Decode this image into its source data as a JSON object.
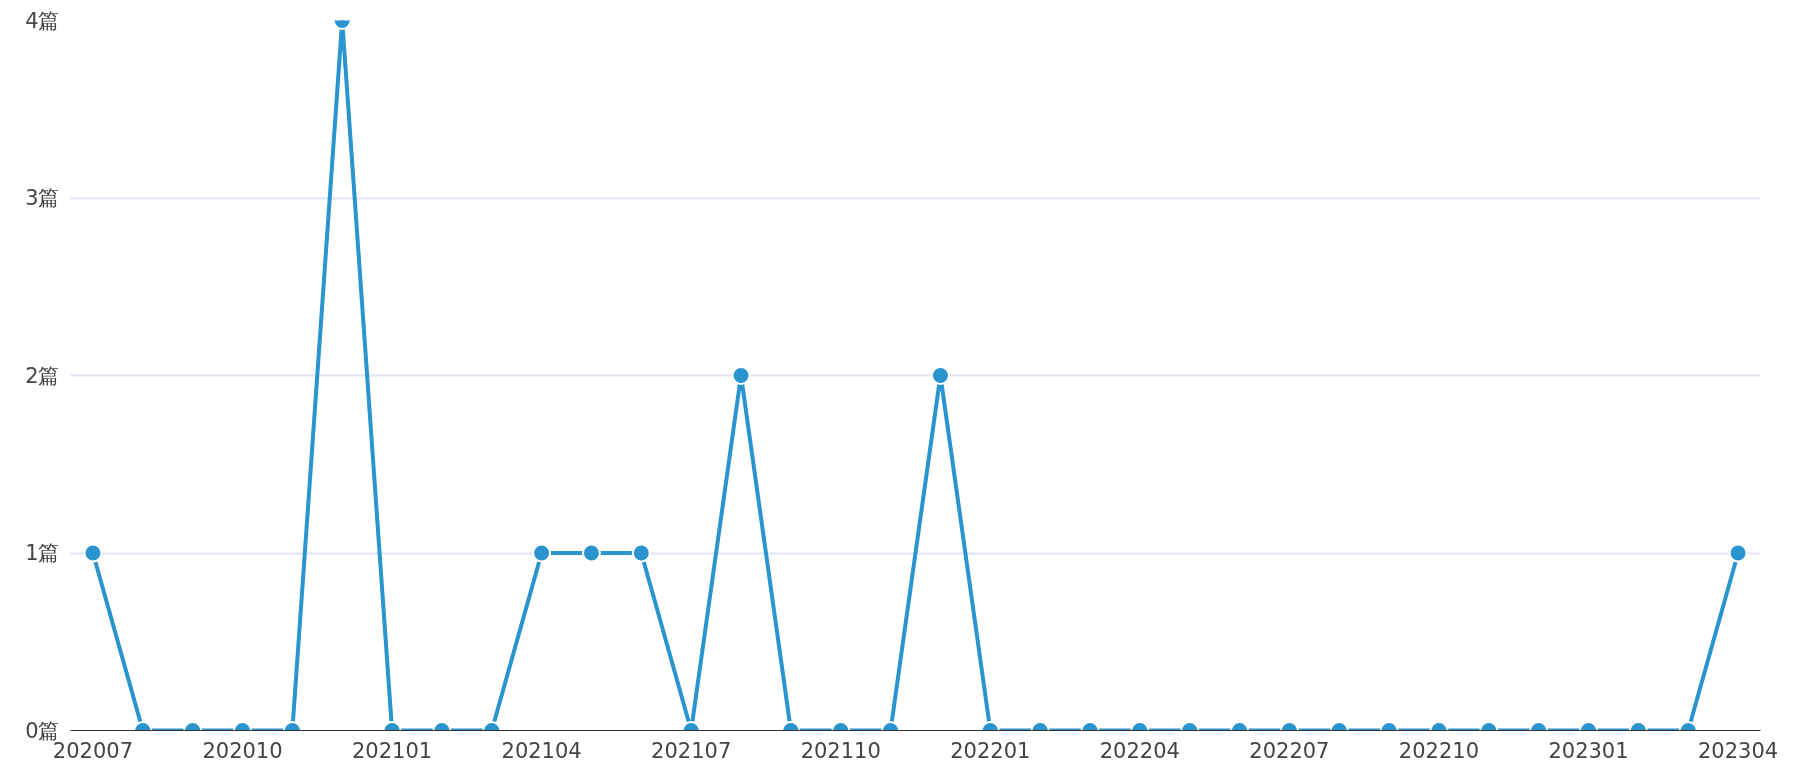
{
  "chart_data": {
    "type": "line",
    "categories": [
      "202007",
      null,
      null,
      "202010",
      null,
      null,
      "202101",
      null,
      null,
      "202104",
      null,
      null,
      "202107",
      null,
      null,
      "202110",
      null,
      null,
      "202201",
      null,
      null,
      "202204",
      null,
      null,
      "202207",
      null,
      null,
      "202210",
      null,
      null,
      "202301",
      null,
      null,
      "202304"
    ],
    "series": [
      {
        "color": "#2a94cf",
        "values": [
          1,
          0,
          0,
          0,
          0,
          4,
          0,
          0,
          0,
          1,
          1,
          1,
          0,
          2,
          0,
          0,
          0,
          2,
          0,
          0,
          0,
          0,
          0,
          0,
          0,
          0,
          0,
          0,
          0,
          0,
          0,
          0,
          0,
          1
        ]
      }
    ],
    "ylim": [
      0,
      4
    ],
    "yticks": [
      {
        "value": 0,
        "label": "0篇"
      },
      {
        "value": 1,
        "label": "1篇"
      },
      {
        "value": 2,
        "label": "2篇"
      },
      {
        "value": 3,
        "label": "3篇"
      },
      {
        "value": 4,
        "label": "4篇"
      }
    ],
    "grid": "y",
    "marker": "circle",
    "line_style": "solid"
  }
}
